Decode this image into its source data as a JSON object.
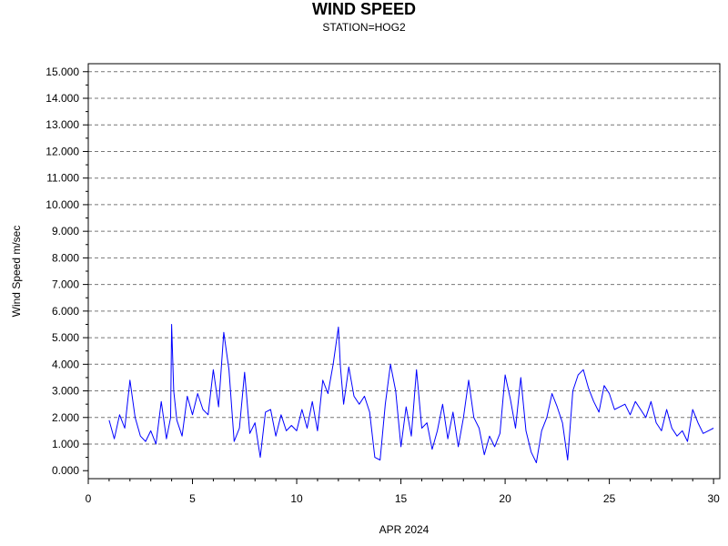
{
  "chart_data": {
    "type": "line",
    "title": "WIND SPEED",
    "subtitle": "STATION=HOG2",
    "xlabel": "APR 2024",
    "ylabel": "Wind Speed m/sec",
    "xlim": [
      0,
      30.3
    ],
    "ylim": [
      -0.3,
      15.3
    ],
    "x_ticks": [
      0,
      5,
      10,
      15,
      20,
      25,
      30
    ],
    "y_ticks": [
      "0.000",
      "1.000",
      "2.000",
      "3.000",
      "4.000",
      "5.000",
      "6.000",
      "7.000",
      "8.000",
      "9.000",
      "10.000",
      "11.000",
      "12.000",
      "13.000",
      "14.000",
      "15.000"
    ],
    "y_tick_values": [
      0,
      1,
      2,
      3,
      4,
      5,
      6,
      7,
      8,
      9,
      10,
      11,
      12,
      13,
      14,
      15
    ],
    "grid": "horizontal dashed",
    "line_color": "#0000ff",
    "series": [
      {
        "x": [
          1.0,
          1.25,
          1.5,
          1.75,
          2.0,
          2.25,
          2.5,
          2.75,
          3.0,
          3.25,
          3.5,
          3.75,
          3.95,
          4.0,
          4.1,
          4.25,
          4.5,
          4.75,
          5.0,
          5.25,
          5.5,
          5.75,
          6.0,
          6.25,
          6.5,
          6.75,
          7.0,
          7.25,
          7.5,
          7.75,
          8.0,
          8.25,
          8.5,
          8.75,
          9.0,
          9.25,
          9.5,
          9.75,
          10.0,
          10.25,
          10.5,
          10.75,
          11.0,
          11.25,
          11.5,
          11.75,
          12.0,
          12.1,
          12.25,
          12.5,
          12.75,
          13.0,
          13.25,
          13.5,
          13.75,
          14.0,
          14.25,
          14.5,
          14.75,
          15.0,
          15.25,
          15.5,
          15.75,
          16.0,
          16.25,
          16.5,
          16.75,
          17.0,
          17.25,
          17.5,
          17.75,
          18.0,
          18.25,
          18.5,
          18.75,
          19.0,
          19.25,
          19.5,
          19.75,
          20.0,
          20.25,
          20.5,
          20.75,
          21.0,
          21.25,
          21.5,
          21.75,
          22.0,
          22.25,
          22.5,
          22.75,
          23.0,
          23.25,
          23.5,
          23.75,
          24.0,
          24.25,
          24.5,
          24.75,
          25.0,
          25.25,
          25.5,
          25.75,
          26.0,
          26.25,
          26.5,
          26.75,
          27.0,
          27.25,
          27.5,
          27.75,
          28.0,
          28.25,
          28.5,
          28.75,
          29.0,
          29.25,
          29.5,
          29.75,
          30.0
        ],
        "y": [
          1.9,
          1.2,
          2.1,
          1.6,
          3.4,
          2.0,
          1.3,
          1.1,
          1.5,
          1.0,
          2.6,
          1.2,
          2.0,
          5.5,
          3.0,
          1.9,
          1.3,
          2.8,
          2.1,
          2.9,
          2.3,
          2.1,
          3.8,
          2.4,
          5.2,
          3.8,
          1.1,
          1.6,
          3.7,
          1.4,
          1.8,
          0.5,
          2.2,
          2.3,
          1.3,
          2.1,
          1.5,
          1.7,
          1.5,
          2.3,
          1.6,
          2.6,
          1.5,
          3.4,
          2.9,
          4.0,
          5.4,
          3.9,
          2.5,
          3.9,
          2.8,
          2.5,
          2.8,
          2.2,
          0.5,
          0.4,
          2.5,
          4.0,
          3.0,
          0.9,
          2.4,
          1.3,
          3.8,
          1.6,
          1.8,
          0.8,
          1.5,
          2.5,
          1.2,
          2.2,
          0.9,
          2.0,
          3.4,
          2.0,
          1.6,
          0.6,
          1.3,
          0.9,
          1.4,
          3.6,
          2.7,
          1.6,
          3.5,
          1.5,
          0.7,
          0.3,
          1.5,
          2.0,
          2.9,
          2.4,
          1.8,
          0.4,
          3.0,
          3.6,
          3.8,
          3.1,
          2.6,
          2.2,
          3.2,
          2.9,
          2.3,
          2.4,
          2.5,
          2.1,
          2.6,
          2.3,
          2.0,
          2.6,
          1.8,
          1.5,
          2.3,
          1.6,
          1.3,
          1.5,
          1.1,
          2.3,
          1.8,
          1.4,
          1.5,
          1.6
        ]
      }
    ]
  }
}
